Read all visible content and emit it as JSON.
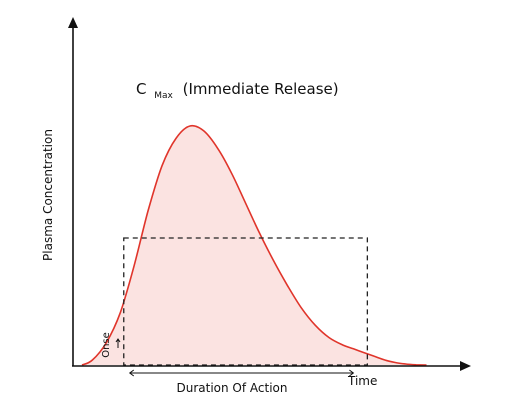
{
  "chart_data": {
    "type": "area",
    "title_main": "C",
    "title_sub": "Max",
    "title_rest": "(Immediate Release)",
    "xlabel": "Time",
    "ylabel": "Plasma Concentration",
    "duration_label": "Duration Of Action",
    "onset_label": "Onse",
    "grid": false,
    "xlim": [
      0,
      100
    ],
    "ylim": [
      0,
      100
    ],
    "series": [
      {
        "x": [
          0,
          3,
          7,
          11,
          15,
          19,
          23,
          27,
          31,
          35,
          39,
          43,
          47,
          51,
          55,
          59,
          63,
          67,
          71,
          75,
          78,
          81,
          84,
          87,
          90,
          93,
          96,
          99
        ],
        "y": [
          0,
          2,
          9,
          21,
          40,
          62,
          80,
          91,
          96,
          94,
          87,
          77,
          65,
          53,
          42,
          32,
          23,
          16,
          11,
          8,
          6.5,
          5,
          3.5,
          2,
          1,
          0.4,
          0.1,
          0
        ]
      }
    ],
    "duration_threshold": 51,
    "duration_x": [
      12,
      82
    ],
    "colors": {
      "line": "#e0352b",
      "fill": "#fbe3e1",
      "axis": "#111111",
      "dash": "#222222"
    }
  }
}
